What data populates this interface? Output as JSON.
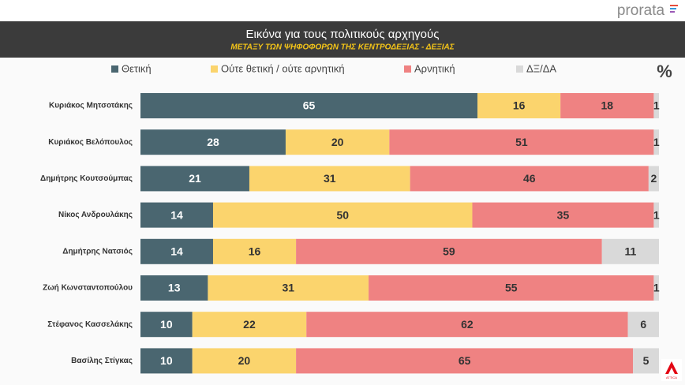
{
  "logo": "prorata",
  "channel": "ATTICA",
  "chart_data": {
    "type": "stacked-barh",
    "title": "Εικόνα για τους πολιτικούς αρχηγούς",
    "subtitle": "ΜΕΤΑΞΥ ΤΩΝ ΨΗΦΟΦΟΡΩΝ ΤΗΣ ΚΕΝΤΡΟΔΕΞΙΑΣ - ΔΕΞΙΑΣ",
    "unit_label": "%",
    "categories": [
      "Κυριάκος Μητσοτάκης",
      "Κυριάκος Βελόπουλος",
      "Δημήτρης Κουτσούμπας",
      "Νίκος Ανδρουλάκης",
      "Δημήτρης Νατσιός",
      "Ζωή Κωνσταντοπούλου",
      "Στέφανος Κασσελάκης",
      "Βασίλης Στίγκας"
    ],
    "series": [
      {
        "name": "Θετική",
        "color": "#4a6670",
        "label_color": "#ffffff",
        "values": [
          65,
          28,
          21,
          14,
          14,
          13,
          10,
          10
        ]
      },
      {
        "name": "Ούτε θετική / ούτε αρνητική",
        "color": "#fbd46d",
        "label_color": "#333333",
        "values": [
          16,
          20,
          31,
          50,
          16,
          31,
          22,
          20
        ]
      },
      {
        "name": "Αρνητική",
        "color": "#ef8282",
        "label_color": "#333333",
        "values": [
          18,
          51,
          46,
          35,
          59,
          55,
          62,
          65
        ]
      },
      {
        "name": "ΔΞ/ΔΑ",
        "color": "#d9d9d9",
        "label_color": "#333333",
        "values": [
          1,
          1,
          2,
          1,
          11,
          1,
          6,
          5
        ]
      }
    ],
    "legend": "top"
  }
}
